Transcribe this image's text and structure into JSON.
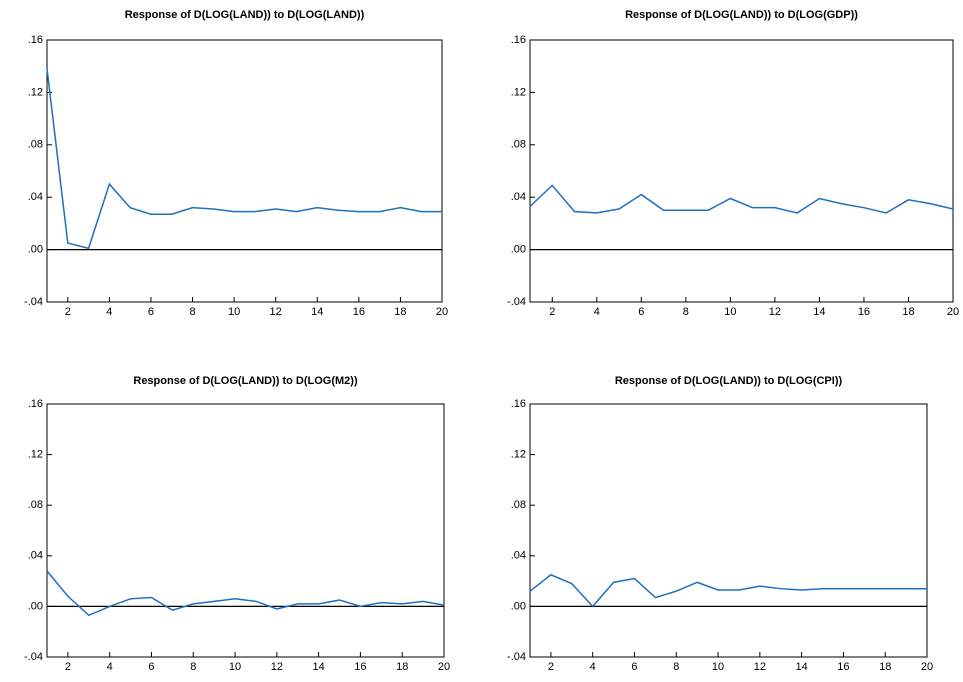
{
  "chart_data": [
    {
      "type": "line",
      "title": "Response of D(LOG(LAND)) to D(LOG(LAND))",
      "color": "#1f6fc0",
      "x": [
        1,
        2,
        3,
        4,
        5,
        6,
        7,
        8,
        9,
        10,
        11,
        12,
        13,
        14,
        15,
        16,
        17,
        18,
        19,
        20
      ],
      "values": [
        0.138,
        0.005,
        0.001,
        0.05,
        0.032,
        0.027,
        0.027,
        0.032,
        0.031,
        0.029,
        0.029,
        0.031,
        0.029,
        0.032,
        0.03,
        0.029,
        0.029,
        0.032,
        0.029,
        0.029
      ],
      "xlim": [
        1,
        20
      ],
      "xticks": [
        2,
        4,
        6,
        8,
        10,
        12,
        14,
        16,
        18,
        20
      ],
      "ylim": [
        -0.04,
        0.16
      ],
      "yticks": [
        {
          "value": -0.04,
          "label": "-.04"
        },
        {
          "value": 0,
          "label": ".00"
        },
        {
          "value": 0.04,
          "label": ".04"
        },
        {
          "value": 0.08,
          "label": ".08"
        },
        {
          "value": 0.12,
          "label": ".12"
        },
        {
          "value": 0.16,
          "label": ".16"
        }
      ]
    },
    {
      "type": "line",
      "title": "Response of D(LOG(LAND)) to D(LOG(GDP))",
      "color": "#1f6fc0",
      "x": [
        1,
        2,
        3,
        4,
        5,
        6,
        7,
        8,
        9,
        10,
        11,
        12,
        13,
        14,
        15,
        16,
        17,
        18,
        19,
        20
      ],
      "values": [
        0.033,
        0.049,
        0.029,
        0.028,
        0.031,
        0.042,
        0.03,
        0.03,
        0.03,
        0.039,
        0.032,
        0.032,
        0.028,
        0.039,
        0.035,
        0.032,
        0.028,
        0.038,
        0.035,
        0.031
      ],
      "xlim": [
        1,
        20
      ],
      "xticks": [
        2,
        4,
        6,
        8,
        10,
        12,
        14,
        16,
        18,
        20
      ],
      "ylim": [
        -0.04,
        0.16
      ],
      "yticks": [
        {
          "value": -0.04,
          "label": "-.04"
        },
        {
          "value": 0,
          "label": ".00"
        },
        {
          "value": 0.04,
          "label": ".04"
        },
        {
          "value": 0.08,
          "label": ".08"
        },
        {
          "value": 0.12,
          "label": ".12"
        },
        {
          "value": 0.16,
          "label": ".16"
        }
      ]
    },
    {
      "type": "line",
      "title": "Response of D(LOG(LAND)) to D(LOG(M2))",
      "color": "#1f6fc0",
      "x": [
        1,
        2,
        3,
        4,
        5,
        6,
        7,
        8,
        9,
        10,
        11,
        12,
        13,
        14,
        15,
        16,
        17,
        18,
        19,
        20
      ],
      "values": [
        0.028,
        0.008,
        -0.007,
        0.0,
        0.006,
        0.007,
        -0.003,
        0.002,
        0.004,
        0.006,
        0.004,
        -0.002,
        0.002,
        0.002,
        0.005,
        0.0,
        0.003,
        0.002,
        0.004,
        0.001
      ],
      "xlim": [
        1,
        20
      ],
      "xticks": [
        2,
        4,
        6,
        8,
        10,
        12,
        14,
        16,
        18,
        20
      ],
      "ylim": [
        -0.04,
        0.16
      ],
      "yticks": [
        {
          "value": -0.04,
          "label": "-.04"
        },
        {
          "value": 0,
          "label": ".00"
        },
        {
          "value": 0.04,
          "label": ".04"
        },
        {
          "value": 0.08,
          "label": ".08"
        },
        {
          "value": 0.12,
          "label": ".12"
        },
        {
          "value": 0.16,
          "label": ".16"
        }
      ]
    },
    {
      "type": "line",
      "title": "Response of D(LOG(LAND)) to D(LOG(CPI))",
      "color": "#1f6fc0",
      "x": [
        1,
        2,
        3,
        4,
        5,
        6,
        7,
        8,
        9,
        10,
        11,
        12,
        13,
        14,
        15,
        16,
        17,
        18,
        19,
        20
      ],
      "values": [
        0.012,
        0.025,
        0.018,
        0.0,
        0.019,
        0.022,
        0.007,
        0.012,
        0.019,
        0.013,
        0.013,
        0.016,
        0.014,
        0.013,
        0.014,
        0.014,
        0.014,
        0.014,
        0.014,
        0.014
      ],
      "xlim": [
        1,
        20
      ],
      "xticks": [
        2,
        4,
        6,
        8,
        10,
        12,
        14,
        16,
        18,
        20
      ],
      "ylim": [
        -0.04,
        0.16
      ],
      "yticks": [
        {
          "value": -0.04,
          "label": "-.04"
        },
        {
          "value": 0,
          "label": ".00"
        },
        {
          "value": 0.04,
          "label": ".04"
        },
        {
          "value": 0.08,
          "label": ".08"
        },
        {
          "value": 0.12,
          "label": ".12"
        },
        {
          "value": 0.16,
          "label": ".16"
        }
      ]
    }
  ]
}
